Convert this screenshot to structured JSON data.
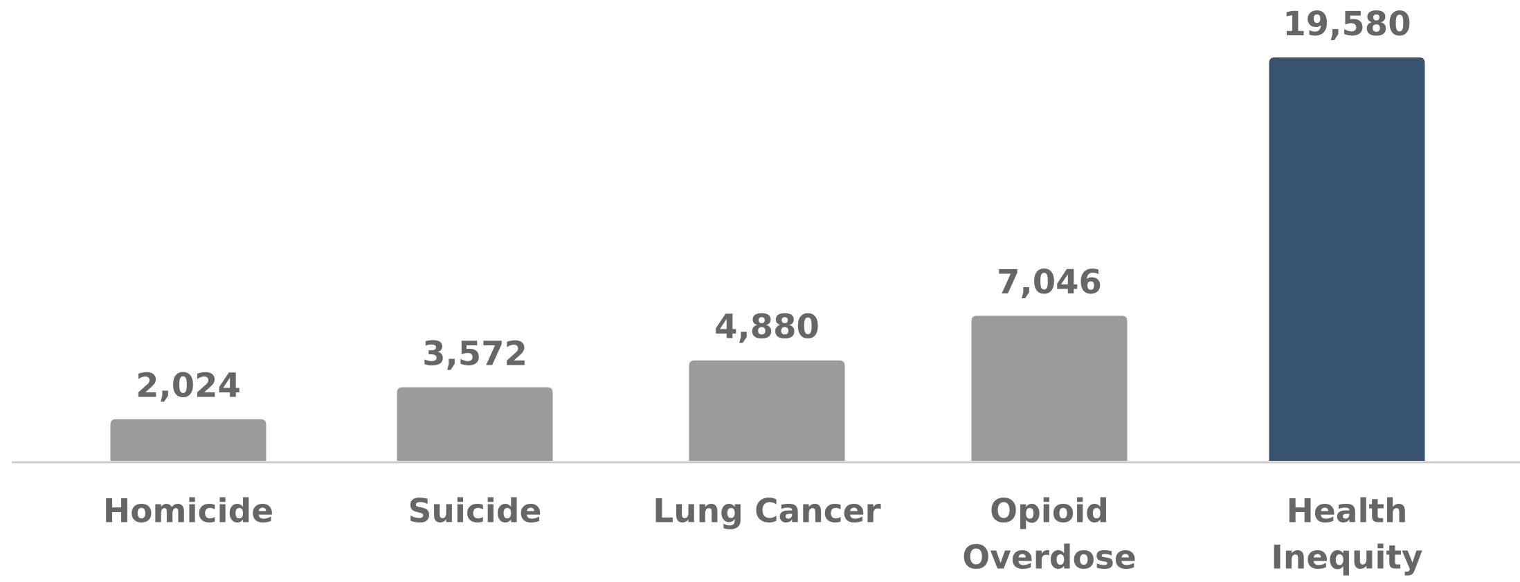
{
  "chart_data": {
    "type": "bar",
    "categories": [
      [
        "Homicide"
      ],
      [
        "Suicide"
      ],
      [
        "Lung Cancer"
      ],
      [
        "Opioid",
        "Overdose"
      ],
      [
        "Health",
        "Inequity"
      ]
    ],
    "values": [
      2024,
      3572,
      4880,
      7046,
      19580
    ],
    "value_labels": [
      "2,024",
      "3,572",
      "4,880",
      "7,046",
      "19,580"
    ],
    "colors": [
      "#9b9b9b",
      "#9b9b9b",
      "#9b9b9b",
      "#9b9b9b",
      "#37536e"
    ]
  }
}
